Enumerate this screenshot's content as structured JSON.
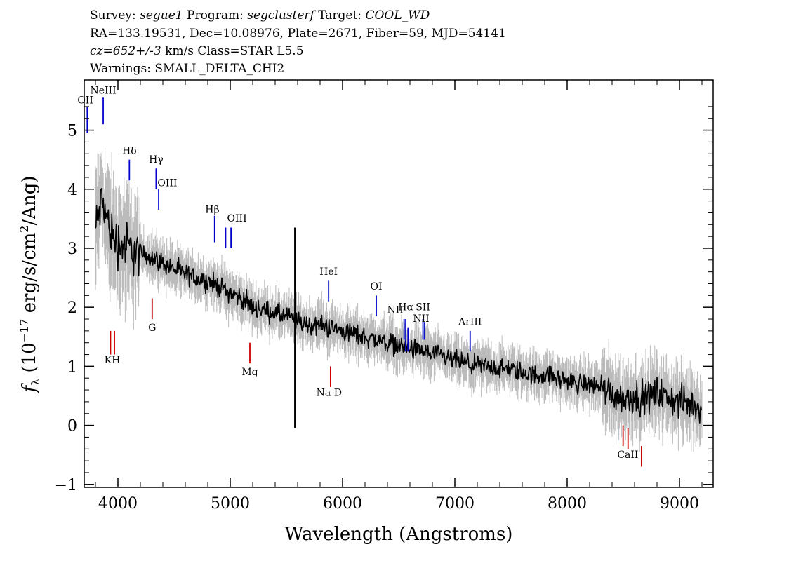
{
  "header": {
    "line1": {
      "survey_label": "Survey: ",
      "survey": "segue1",
      "program_label": " Program: ",
      "program": "segclusterf",
      "target_label": " Target: ",
      "target": "COOL_WD"
    },
    "line2": "RA=133.19531, Dec=10.08976, Plate=2671, Fiber=59, MJD=54141",
    "line3": {
      "cz": "cz=652+/-3",
      "rest": " km/s Class=STAR L5.5"
    },
    "line4": "Warnings: SMALL_DELTA_CHI2"
  },
  "chart_data": {
    "type": "line",
    "xlabel": "Wavelength (Angstroms)",
    "ylabel_parts": [
      "f",
      "λ",
      " (10",
      "−17",
      " erg/s/cm",
      "2",
      "/Ang)"
    ],
    "xlim": [
      3700,
      9300
    ],
    "ylim": [
      -1.05,
      5.85
    ],
    "x_ticks": [
      4000,
      5000,
      6000,
      7000,
      8000,
      9000
    ],
    "y_ticks": [
      -1,
      0,
      1,
      2,
      3,
      4,
      5
    ],
    "grid": false,
    "colors": {
      "flux": "#000000",
      "error": "#bbbbbb",
      "emission": "#0000cc",
      "absorption": "#cc0000"
    },
    "series": [
      {
        "role": "flux",
        "x": [
          3800,
          3830,
          3860,
          3900,
          3950,
          4000,
          4100,
          4200,
          4300,
          4400,
          4500,
          4600,
          4700,
          4800,
          4900,
          5000,
          5100,
          5200,
          5300,
          5400,
          5500,
          5600,
          5700,
          5800,
          5900,
          6000,
          6100,
          6200,
          6300,
          6400,
          6500,
          6600,
          6700,
          6800,
          6900,
          7000,
          7100,
          7200,
          7300,
          7400,
          7500,
          7600,
          7700,
          7800,
          7900,
          8000,
          8100,
          8200,
          8300,
          8400,
          8500,
          8600,
          8700,
          8800,
          8900,
          9000,
          9100,
          9200
        ],
        "y": [
          3.3,
          3.6,
          3.8,
          3.5,
          3.2,
          3.1,
          3.0,
          2.9,
          2.85,
          2.75,
          2.65,
          2.55,
          2.5,
          2.45,
          2.35,
          2.25,
          2.15,
          2.0,
          1.95,
          1.9,
          1.85,
          1.75,
          1.7,
          1.7,
          1.65,
          1.6,
          1.55,
          1.5,
          1.45,
          1.4,
          1.35,
          1.3,
          1.25,
          1.2,
          1.15,
          1.1,
          1.05,
          1.0,
          1.0,
          0.95,
          0.95,
          0.9,
          0.85,
          0.85,
          0.8,
          0.75,
          0.7,
          0.7,
          0.65,
          0.55,
          0.45,
          0.5,
          0.45,
          0.55,
          0.45,
          0.4,
          0.35,
          0.3
        ]
      }
    ],
    "spikes": [
      {
        "x": 5577,
        "y0": -0.05,
        "y1": 3.35
      }
    ],
    "lines": [
      {
        "label": "OII",
        "x": 3727,
        "kind": "emission",
        "y0": 4.95,
        "y1": 5.4,
        "lx": 3710,
        "ly": 5.45
      },
      {
        "label": "NeIII",
        "x": 3869,
        "kind": "emission",
        "y0": 5.1,
        "y1": 5.55,
        "lx": 3869,
        "ly": 5.62
      },
      {
        "label": "Hδ",
        "x": 4102,
        "kind": "emission",
        "y0": 4.15,
        "y1": 4.5,
        "lx": 4102,
        "ly": 4.6
      },
      {
        "label": "Hγ",
        "x": 4340,
        "kind": "emission",
        "y0": 4.0,
        "y1": 4.35,
        "lx": 4340,
        "ly": 4.45
      },
      {
        "label": "OIII",
        "x": 4363,
        "kind": "emission",
        "y0": 3.65,
        "y1": 4.0,
        "lx": 4440,
        "ly": 4.05
      },
      {
        "label": "Hβ",
        "x": 4861,
        "kind": "emission",
        "y0": 3.1,
        "y1": 3.55,
        "lx": 4840,
        "ly": 3.6
      },
      {
        "label": "OIII",
        "x": 4959,
        "kind": "emission",
        "y0": 3.0,
        "y1": 3.35,
        "lx": 5060,
        "ly": 3.45
      },
      {
        "label": "",
        "x": 5007,
        "kind": "emission",
        "y0": 3.0,
        "y1": 3.35,
        "lx": 5007,
        "ly": 3.4
      },
      {
        "label": "HeI",
        "x": 5876,
        "kind": "emission",
        "y0": 2.1,
        "y1": 2.45,
        "lx": 5876,
        "ly": 2.55
      },
      {
        "label": "OI",
        "x": 6300,
        "kind": "emission",
        "y0": 1.85,
        "y1": 2.2,
        "lx": 6300,
        "ly": 2.3
      },
      {
        "label": "NII",
        "x": 6548,
        "kind": "emission",
        "y0": 1.45,
        "y1": 1.8,
        "lx": 6470,
        "ly": 1.9
      },
      {
        "label": "Hα",
        "x": 6563,
        "kind": "emission",
        "y0": 1.25,
        "y1": 1.8,
        "lx": 6563,
        "ly": 1.95
      },
      {
        "label": "",
        "x": 6583,
        "kind": "emission",
        "y0": 1.25,
        "y1": 1.65,
        "lx": 6583,
        "ly": 1.7
      },
      {
        "label": "SII",
        "x": 6716,
        "kind": "emission",
        "y0": 1.45,
        "y1": 1.8,
        "lx": 6716,
        "ly": 1.95
      },
      {
        "label": "NII",
        "x": 6731,
        "kind": "emission",
        "y0": 1.45,
        "y1": 1.75,
        "lx": 6700,
        "ly": 1.75
      },
      {
        "label": "ArIII",
        "x": 7136,
        "kind": "emission",
        "y0": 1.25,
        "y1": 1.6,
        "lx": 7136,
        "ly": 1.7
      },
      {
        "label": "",
        "x": 3934,
        "kind": "absorption",
        "y0": 1.2,
        "y1": 1.6,
        "lx": 3934,
        "ly": 1.6
      },
      {
        "label": "KH",
        "x": 3969,
        "kind": "absorption",
        "y0": 1.2,
        "y1": 1.6,
        "lx": 3950,
        "ly": 1.05
      },
      {
        "label": "G",
        "x": 4305,
        "kind": "absorption",
        "y0": 1.8,
        "y1": 2.15,
        "lx": 4305,
        "ly": 1.6
      },
      {
        "label": "Mg",
        "x": 5175,
        "kind": "absorption",
        "y0": 1.05,
        "y1": 1.4,
        "lx": 5175,
        "ly": 0.85
      },
      {
        "label": "Na D",
        "x": 5893,
        "kind": "absorption",
        "y0": 0.65,
        "y1": 1.0,
        "lx": 5880,
        "ly": 0.5
      },
      {
        "label": "",
        "x": 8498,
        "kind": "absorption",
        "y0": -0.35,
        "y1": 0.0,
        "lx": 8498,
        "ly": 0.0
      },
      {
        "label": "CaII",
        "x": 8542,
        "kind": "absorption",
        "y0": -0.4,
        "y1": -0.05,
        "lx": 8540,
        "ly": -0.55
      },
      {
        "label": "",
        "x": 8662,
        "kind": "absorption",
        "y0": -0.7,
        "y1": -0.35,
        "lx": 8662,
        "ly": -0.35
      }
    ]
  }
}
